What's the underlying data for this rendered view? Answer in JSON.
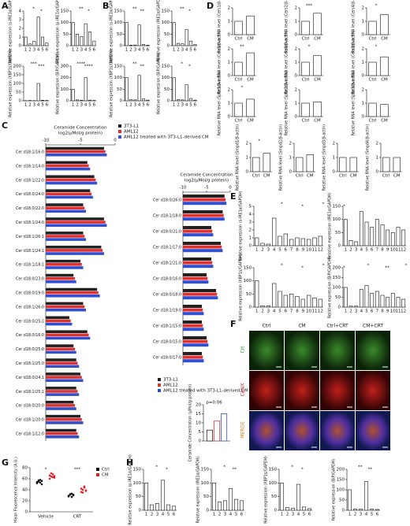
{
  "panel_labels": [
    "A",
    "B",
    "C",
    "D",
    "E",
    "F",
    "G",
    "H"
  ],
  "chart_data": [
    {
      "type": "bar",
      "ylabel": "Relative expression (s-IRE1α/GAPDH)",
      "categories": [
        "1",
        "2",
        "3",
        "4",
        "5",
        "6"
      ],
      "values": [
        1,
        0.2,
        0.5,
        3.3,
        1,
        0.3
      ],
      "ylim": [
        0,
        4
      ],
      "yticks": [
        0,
        1,
        2,
        3,
        4
      ],
      "color": "#ffffff",
      "annotations": [
        "*",
        "*"
      ]
    },
    {
      "type": "bar",
      "ylabel": "Relative expression (p-IRE1α/GAPDH)",
      "categories": [
        "1",
        "2",
        "3",
        "4",
        "5",
        "6"
      ],
      "values": [
        100,
        50,
        40,
        95,
        60,
        20
      ],
      "ylim": [
        0,
        150
      ],
      "yticks": [
        0,
        50,
        100,
        150
      ],
      "color": "#ffffff",
      "annotations": [
        "**",
        "*"
      ]
    },
    {
      "type": "bar",
      "ylabel": "Relative expression (XBP1s/GAPDH)",
      "categories": [
        "1",
        "2",
        "3",
        "4",
        "5",
        "6"
      ],
      "values": [
        1,
        2,
        1,
        100,
        3,
        2
      ],
      "ylim": [
        0,
        200
      ],
      "yticks": [
        0,
        50,
        100,
        150,
        200
      ],
      "color": "#ffffff",
      "annotations": [
        "***",
        "***"
      ]
    },
    {
      "type": "bar",
      "ylabel": "Relative expression (BiP/GAPDH)",
      "categories": [
        "1",
        "2",
        "3",
        "4",
        "5",
        "6"
      ],
      "values": [
        100,
        8,
        5,
        200,
        6,
        3
      ],
      "ylim": [
        0,
        300
      ],
      "yticks": [
        0,
        100,
        200,
        300
      ],
      "color": "#ffffff",
      "annotations": [
        "****",
        "****"
      ]
    },
    {
      "type": "bar",
      "ylabel": "Relative expression (s-IRE1α/GAPDH)",
      "categories": [
        "1",
        "2",
        "3",
        "4",
        "5",
        "6"
      ],
      "values": [
        100,
        2,
        3,
        90,
        5,
        2
      ],
      "ylim": [
        0,
        150
      ],
      "yticks": [
        0,
        50,
        100,
        150
      ],
      "color": "#ffffff",
      "annotations": [
        "**",
        "**"
      ]
    },
    {
      "type": "bar",
      "ylabel": "Relative expression (IRE1α/GAPDH)",
      "categories": [
        "1",
        "2",
        "3",
        "4",
        "5",
        "6"
      ],
      "values": [
        100,
        10,
        8,
        70,
        20,
        5
      ],
      "ylim": [
        0,
        150
      ],
      "yticks": [
        0,
        50,
        100,
        150
      ],
      "color": "#ffffff",
      "annotations": [
        "**",
        "*"
      ]
    },
    {
      "type": "bar",
      "ylabel": "Relative expression (XBP1s/GAPDH)",
      "categories": [
        "1",
        "2",
        "3",
        "4",
        "5",
        "6"
      ],
      "values": [
        100,
        5,
        4,
        110,
        8,
        3
      ],
      "ylim": [
        0,
        150
      ],
      "yticks": [
        0,
        50,
        100,
        150
      ],
      "color": "#ffffff",
      "annotations": [
        "**",
        "**"
      ]
    },
    {
      "type": "bar",
      "ylabel": "Relative expression (BiP/GAPDH)",
      "categories": [
        "1",
        "2",
        "3",
        "4",
        "5",
        "6"
      ],
      "values": [
        100,
        5,
        4,
        70,
        10,
        3
      ],
      "ylim": [
        0,
        150
      ],
      "yticks": [
        0,
        50,
        100,
        150
      ],
      "color": "#ffffff",
      "annotations": [
        "*",
        "*"
      ]
    },
    {
      "type": "bar",
      "ylabel": "Relative RNA level (Cers1/β-actin)",
      "categories": [
        "Ctrl",
        "CM"
      ],
      "values": [
        1,
        1.4
      ],
      "ylim": [
        0,
        2
      ],
      "yticks": [
        0,
        1,
        2
      ],
      "color": "#ffffff",
      "annotations": []
    },
    {
      "type": "bar",
      "ylabel": "Relative RNA level (Cers2/β-actin)",
      "categories": [
        "Ctrl",
        "CM"
      ],
      "values": [
        1,
        1.6
      ],
      "ylim": [
        0,
        2
      ],
      "yticks": [
        0,
        1,
        2
      ],
      "color": "#ffffff",
      "annotations": [
        "***"
      ]
    },
    {
      "type": "bar",
      "ylabel": "Relative RNA level (Cers4/β-actin)",
      "categories": [
        "Ctrl",
        "CM"
      ],
      "values": [
        1,
        1.5
      ],
      "ylim": [
        0,
        2
      ],
      "yticks": [
        0,
        1,
        2
      ],
      "color": "#ffffff",
      "annotations": [
        "*"
      ]
    },
    {
      "type": "bar",
      "ylabel": "Relative RNA level (Cers5/β-actin)",
      "categories": [
        "Ctrl",
        "CM"
      ],
      "values": [
        1,
        1.7
      ],
      "ylim": [
        0,
        2
      ],
      "yticks": [
        0,
        1,
        2
      ],
      "color": "#ffffff",
      "annotations": [
        "**"
      ]
    },
    {
      "type": "bar",
      "ylabel": "Relative RNA level (Cers6/β-actin)",
      "categories": [
        "Ctrl",
        "CM"
      ],
      "values": [
        1,
        1.5
      ],
      "ylim": [
        0,
        2
      ],
      "yticks": [
        0,
        1,
        2
      ],
      "color": "#ffffff",
      "annotations": [
        "*"
      ]
    },
    {
      "type": "bar",
      "ylabel": "Relative RNA level (Cers3/β-actin)",
      "categories": [
        "Ctrl",
        "CM"
      ],
      "values": [
        1,
        1.4
      ],
      "ylim": [
        0,
        2
      ],
      "yticks": [
        0,
        1,
        2
      ],
      "color": "#ffffff",
      "annotations": [
        "*"
      ]
    },
    {
      "type": "bar",
      "ylabel": "Relative RNA level (Sptlc1/β-actin)",
      "categories": [
        "Ctrl",
        "CM"
      ],
      "values": [
        1,
        1.3
      ],
      "ylim": [
        0,
        2
      ],
      "yticks": [
        0,
        1,
        2
      ],
      "color": "#ffffff",
      "annotations": [
        "*"
      ]
    },
    {
      "type": "bar",
      "ylabel": "Relative RNA level (Sptlc2/β-actin)",
      "categories": [
        "Ctrl",
        "CM"
      ],
      "values": [
        1,
        1.1
      ],
      "ylim": [
        0,
        2
      ],
      "yticks": [
        0,
        1,
        2
      ],
      "color": "#ffffff",
      "annotations": []
    },
    {
      "type": "bar",
      "ylabel": "Relative RNA level (Sptlc3/β-actin)",
      "categories": [
        "Ctrl",
        "CM"
      ],
      "values": [
        1,
        0.9
      ],
      "ylim": [
        0,
        2
      ],
      "yticks": [
        0,
        1,
        2
      ],
      "color": "#ffffff",
      "annotations": []
    },
    {
      "type": "bar",
      "ylabel": "Relative RNA level (Smpd1/β-actin)",
      "categories": [
        "Ctrl",
        "CM"
      ],
      "values": [
        1,
        1.3
      ],
      "ylim": [
        0,
        2
      ],
      "yticks": [
        0,
        1,
        2
      ],
      "color": "#ffffff",
      "annotations": [
        "*"
      ]
    },
    {
      "type": "bar",
      "ylabel": "Relative RNA level (Smpd2/β-actin)",
      "categories": [
        "Ctrl",
        "CM"
      ],
      "values": [
        1,
        1.2
      ],
      "ylim": [
        0,
        2
      ],
      "yticks": [
        0,
        1,
        2
      ],
      "color": "#ffffff",
      "annotations": []
    },
    {
      "type": "bar",
      "ylabel": "Relative RNA level (Smpd3/β-actin)",
      "categories": [
        "Ctrl",
        "CM"
      ],
      "values": [
        1,
        1
      ],
      "ylim": [
        0,
        2
      ],
      "yticks": [
        0,
        1,
        2
      ],
      "color": "#ffffff",
      "annotations": []
    },
    {
      "type": "bar",
      "ylabel": "Relative RNA level (Smpd4/β-actin)",
      "categories": [
        "Ctrl",
        "CM"
      ],
      "values": [
        1,
        1
      ],
      "ylim": [
        0,
        2
      ],
      "yticks": [
        0,
        1,
        2
      ],
      "color": "#ffffff",
      "annotations": []
    },
    {
      "type": "hbar",
      "title": "Ceramide Concentration",
      "xlabel": "log2(μMol/g protein)",
      "legend": true,
      "categories": [
        "Cer d18:1/16:0",
        "Cer d18:1/14:0",
        "Cer d18:1/22:0",
        "Cer d18:0/24:0",
        "Cer d18:0/22:0",
        "Cer d18:1/24:0",
        "Cer d18:1/26:1",
        "Cer d18:1/24:1",
        "Cer d18:1/18:1",
        "Cer d18:0/23:0",
        "Cer d18:0/19:0",
        "Cer d18:1/26:0",
        "Cer d18:0/25:1",
        "Cer d18:0/16:0",
        "Cer d18:0/25:0",
        "Cer d18:1/25:0",
        "Cer d18:0/24:1",
        "Cer d18:1/25:1",
        "Cer d18:0/20:0",
        "Cer d18:1/20:0",
        "Cer d18:1/12:0"
      ],
      "series": [
        {
          "name": "3T3-L1",
          "color": "#222222",
          "values": [
            -1.6,
            -4,
            -3,
            -3.6,
            -4.6,
            -1.6,
            -4.6,
            -2,
            -5,
            -6,
            -2.6,
            -4.6,
            -6.6,
            -4,
            -6,
            -5.6,
            -5,
            -5.6,
            -6,
            -5,
            -5.6
          ]
        },
        {
          "name": "AML12",
          "color": "#e03030",
          "values": [
            -1.4,
            -3.8,
            -2.8,
            -3.4,
            -4.4,
            -1.4,
            -4.4,
            -1.8,
            -4.8,
            -5.8,
            -2.4,
            -4.4,
            -6.4,
            -3.8,
            -5.8,
            -5.4,
            -4.8,
            -5.4,
            -5.8,
            -4.8,
            -5.4
          ]
        },
        {
          "name": "AML12 treated with 3T3-L1-derived CM",
          "color": "#3050d0",
          "values": [
            -1.2,
            -3.6,
            -2.6,
            -3.2,
            -4.2,
            -1.2,
            -4.2,
            -1.6,
            -4.6,
            -5.6,
            -2.2,
            -4.2,
            -6.2,
            -3.6,
            -5.6,
            -5.2,
            -4.6,
            -5.2,
            -5.6,
            -4.6,
            -5.2
          ]
        }
      ],
      "xlim": [
        -10,
        0
      ],
      "xticks": [
        -10,
        -5,
        0
      ]
    },
    {
      "type": "hbar",
      "title": "Ceramide Concentration",
      "xlabel": "log2(μMol/g protein)",
      "categories": [
        "Cer d18:0/26:0",
        "Cer d18:1/18:0",
        "Cer d18:0/21:0",
        "Cer d18:1/17:0",
        "Cer d18:1/21:0",
        "Cer d18:0/16:0",
        "Cer d18:0/18:0",
        "Cer d18:1/19:0",
        "Cer d18:1/15:0",
        "Cer d18:0/15:0",
        "Cer d18:0/17:0"
      ],
      "series": [
        {
          "color": "#222222",
          "values": [
            -1.2,
            -1.6,
            -4,
            -2,
            -4,
            -5,
            -3,
            -6,
            -6,
            -5,
            -6
          ]
        },
        {
          "color": "#e03030",
          "values": [
            -1,
            -1.4,
            -3.8,
            -1.8,
            -3.8,
            -4.8,
            -2.8,
            -5.8,
            -5.8,
            -4.8,
            -5.8
          ]
        },
        {
          "color": "#3050d0",
          "values": [
            -0.8,
            -1.2,
            -3.6,
            -1.6,
            -3.6,
            -4.6,
            -2.6,
            -5.6,
            -5.6,
            -4.6,
            -5.6
          ]
        }
      ],
      "xlim": [
        -10,
        0
      ],
      "xticks": [
        -10,
        -5,
        0
      ]
    },
    {
      "type": "bar",
      "ylabel": "Ceramide Concentration (μMol/g protein)",
      "categories": [
        null
      ],
      "legend": true,
      "series": [
        {
          "name": "3T3-L1",
          "color": "#222222",
          "values": [
            6
          ]
        },
        {
          "name": "AML12",
          "color": "#e03030",
          "values": [
            11
          ]
        },
        {
          "name": "AML12 treated with 3T3-L1-derived CM",
          "color": "#3050d0",
          "values": [
            15
          ]
        }
      ],
      "ylim": [
        0,
        20
      ],
      "yticks": [
        0,
        5,
        10,
        15,
        20
      ],
      "annotations": [
        "p=0.06"
      ]
    },
    {
      "type": "bar",
      "ylabel": "Relative expression (s-IRE1α/GAPDH)",
      "categories": [
        "1",
        "2",
        "3",
        "4",
        "5",
        "6",
        "7",
        "8",
        "9",
        "10",
        "11",
        "12"
      ],
      "values": [
        1,
        0.3,
        0.2,
        3.5,
        1.2,
        1.5,
        0.8,
        1,
        0.9,
        0.8,
        1,
        1.2
      ],
      "ylim": [
        0,
        5
      ],
      "yticks": [
        0,
        1,
        2,
        3,
        4,
        5
      ],
      "color": "#ffffff",
      "annotations": [
        "*",
        "*",
        "*",
        "*"
      ]
    },
    {
      "type": "bar",
      "ylabel": "Relative expression (IRE1α/GAPDH)",
      "categories": [
        "1",
        "2",
        "3",
        "4",
        "5",
        "6",
        "7",
        "8",
        "9",
        "10",
        "11",
        "12"
      ],
      "values": [
        100,
        20,
        15,
        130,
        90,
        70,
        100,
        80,
        60,
        50,
        70,
        60
      ],
      "ylim": [
        0,
        150
      ],
      "yticks": [
        0,
        50,
        100,
        150
      ],
      "color": "#ffffff",
      "annotations": []
    },
    {
      "type": "bar",
      "ylabel": "Relative expression (XBP1s/GAPDH)",
      "categories": [
        "1",
        "2",
        "3",
        "4",
        "5",
        "6",
        "7",
        "8",
        "9",
        "10",
        "11",
        "12"
      ],
      "values": [
        100,
        5,
        5,
        90,
        60,
        45,
        50,
        40,
        30,
        45,
        35,
        30
      ],
      "ylim": [
        0,
        150
      ],
      "yticks": [
        0,
        50,
        100,
        150
      ],
      "color": "#ffffff",
      "annotations": [
        "*",
        "*",
        "*",
        "*"
      ]
    },
    {
      "type": "bar",
      "ylabel": "Relative expression (BiP/GAPDH)",
      "categories": [
        "1",
        "2",
        "3",
        "4",
        "5",
        "6",
        "7",
        "8",
        "9",
        "10",
        "11",
        "12"
      ],
      "values": [
        100,
        5,
        5,
        90,
        110,
        70,
        80,
        60,
        50,
        70,
        50,
        40
      ],
      "ylim": [
        0,
        200
      ],
      "yticks": [
        0,
        50,
        100,
        150,
        200
      ],
      "color": "#ffffff",
      "annotations": [
        "*",
        "**",
        "*"
      ]
    },
    {
      "type": "strip",
      "ylabel": "Mean Fluorescence Intensity (A.U.)",
      "categories": [
        "Vehicle",
        "CRT"
      ],
      "legend": true,
      "series": [
        {
          "name": "Ctrl",
          "color": "#111111",
          "values": [
            [
              52,
              55,
              58,
              50,
              54,
              57,
              53,
              56
            ],
            [
              28,
              31,
              33,
              30,
              29,
              32,
              27,
              31
            ]
          ]
        },
        {
          "name": "CM",
          "color": "#e02020",
          "values": [
            [
              60,
              64,
              68,
              62,
              66,
              70,
              63,
              65
            ],
            [
              36,
              40,
              44,
              38,
              42,
              35,
              46,
              39
            ]
          ]
        }
      ],
      "ylim": [
        0,
        80
      ],
      "yticks": [
        0,
        20,
        40,
        60,
        80
      ],
      "annotations": [
        "*",
        "***"
      ]
    },
    {
      "type": "bar",
      "ylabel": "Relative expression (p-IRE1α/GAPDH)",
      "categories": [
        "1",
        "2",
        "3",
        "4",
        "5",
        "6"
      ],
      "values": [
        100,
        20,
        25,
        110,
        20,
        15
      ],
      "ylim": [
        0,
        150
      ],
      "yticks": [
        0,
        50,
        100,
        150
      ],
      "color": "#ffffff",
      "annotations": [
        "*",
        "*"
      ]
    },
    {
      "type": "bar",
      "ylabel": "Relative expression (IRE1α/GAPDH)",
      "categories": [
        "1",
        "2",
        "3",
        "4",
        "5",
        "6"
      ],
      "values": [
        100,
        30,
        35,
        80,
        40,
        35
      ],
      "ylim": [
        0,
        150
      ],
      "yticks": [
        0,
        50,
        100,
        150
      ],
      "color": "#ffffff",
      "annotations": [
        "*",
        "**"
      ]
    },
    {
      "type": "bar",
      "ylabel": "Relative expression (XBP1s/GAPDH)",
      "categories": [
        "1",
        "2",
        "3",
        "4",
        "5",
        "6"
      ],
      "values": [
        100,
        10,
        8,
        95,
        12,
        6
      ],
      "ylim": [
        0,
        150
      ],
      "yticks": [
        0,
        50,
        100,
        150
      ],
      "color": "#ffffff",
      "annotations": [
        "*",
        "*"
      ]
    },
    {
      "type": "bar",
      "ylabel": "Relative expression (BiP/GAPDH)",
      "categories": [
        "1",
        "2",
        "3",
        "4",
        "5",
        "6"
      ],
      "values": [
        100,
        5,
        5,
        140,
        5,
        4
      ],
      "ylim": [
        0,
        200
      ],
      "yticks": [
        0,
        50,
        100,
        150,
        200
      ],
      "color": "#ffffff",
      "annotations": [
        "**",
        "**"
      ]
    }
  ],
  "image_panel": {
    "columns": [
      "Ctrl",
      "CM",
      "Ctrl+CRT",
      "CM+CRT"
    ],
    "rows": [
      "Crt",
      "CANX",
      "MERGE"
    ]
  }
}
